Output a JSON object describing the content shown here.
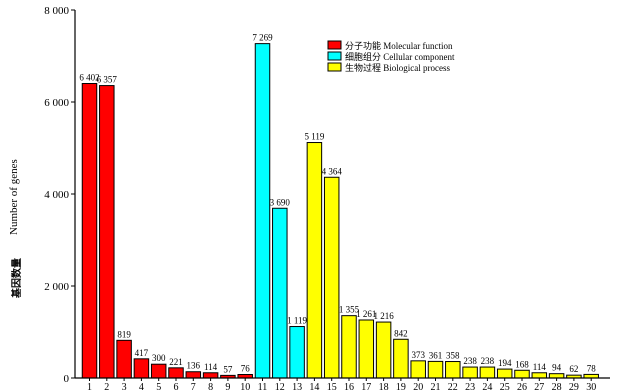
{
  "chart_data": {
    "type": "bar",
    "categories": [
      "1",
      "2",
      "3",
      "4",
      "5",
      "6",
      "7",
      "8",
      "9",
      "10",
      "11",
      "12",
      "13",
      "14",
      "15",
      "16",
      "17",
      "18",
      "19",
      "20",
      "21",
      "22",
      "23",
      "24",
      "25",
      "26",
      "27",
      "28",
      "29",
      "30"
    ],
    "values": [
      6402,
      6357,
      819,
      417,
      300,
      221,
      136,
      114,
      57,
      76,
      7269,
      3690,
      1119,
      5119,
      4364,
      1355,
      1261,
      1216,
      842,
      373,
      361,
      358,
      238,
      238,
      194,
      168,
      114,
      94,
      62,
      78
    ],
    "value_labels": [
      "6 402",
      "6 357",
      "819",
      "417",
      "300",
      "221",
      "136",
      "114",
      "57",
      "76",
      "7 269",
      "3 690",
      "1 119",
      "5 119",
      "4 364",
      "1 355",
      "1 261",
      "1 216",
      "842",
      "373",
      "361",
      "358",
      "238",
      "238",
      "194",
      "168",
      "114",
      "94",
      "62",
      "78"
    ],
    "groups": [
      0,
      0,
      0,
      0,
      0,
      0,
      0,
      0,
      0,
      0,
      1,
      1,
      1,
      2,
      2,
      2,
      2,
      2,
      2,
      2,
      2,
      2,
      2,
      2,
      2,
      2,
      2,
      2,
      2,
      2
    ],
    "legend": [
      {
        "label": "分子功能 Molecular function",
        "color": "#ff0000"
      },
      {
        "label": "细胞组分 Cellular component",
        "color": "#00ffff"
      },
      {
        "label": "生物过程 Biological process",
        "color": "#ffff00"
      }
    ],
    "ylabel_en": "Number of genes",
    "ylabel_zh": "基因数量",
    "yticks": [
      0,
      2000,
      4000,
      6000,
      8000
    ],
    "ytick_labels": [
      "0",
      "2 000",
      "4 000",
      "6 000",
      "8 000"
    ],
    "ylim": [
      0,
      8000
    ],
    "legend_position": "top-center",
    "grid": false
  }
}
